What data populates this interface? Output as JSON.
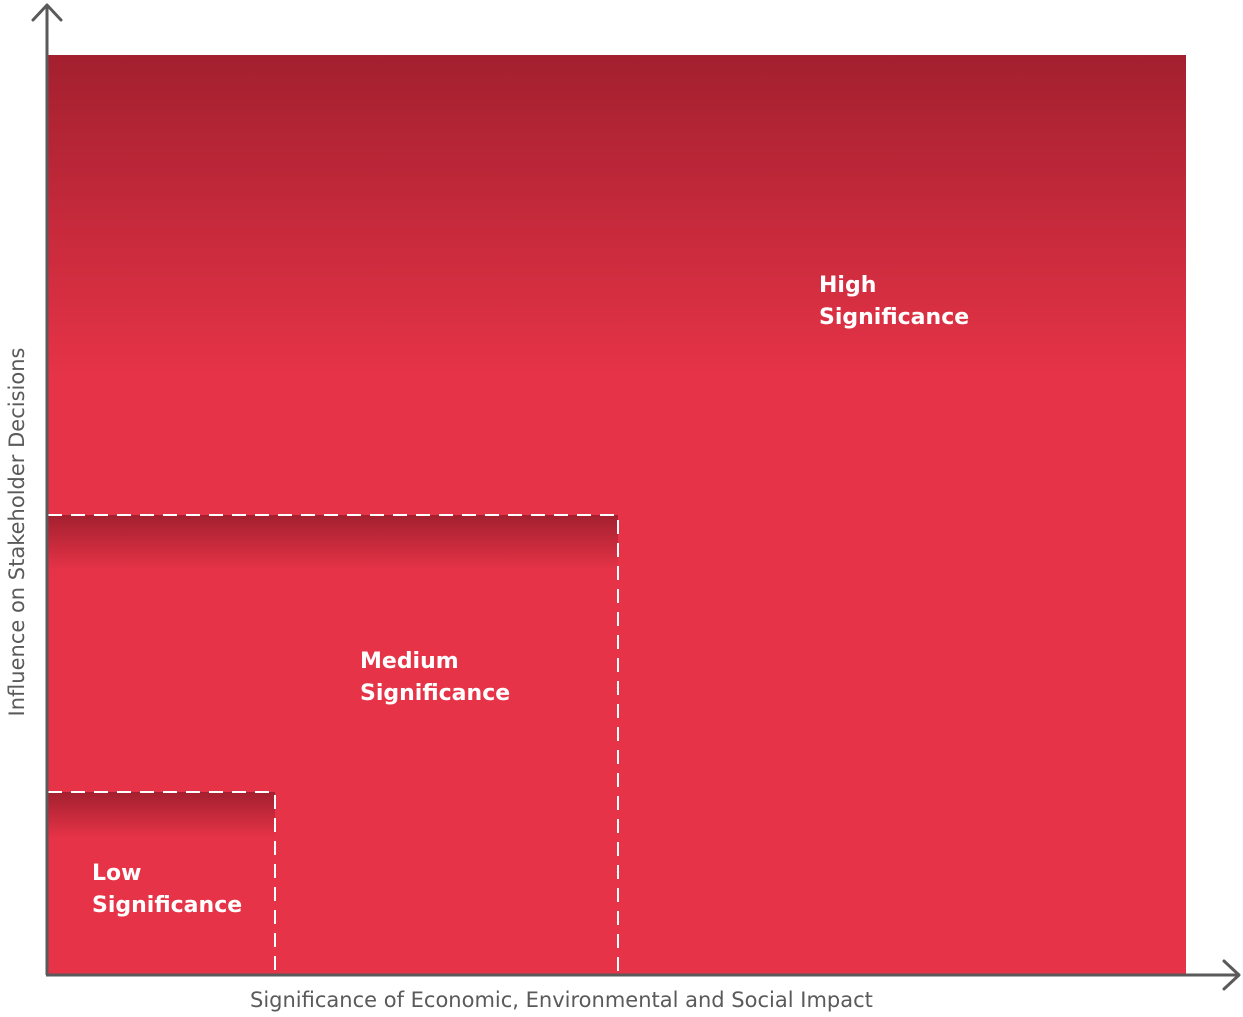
{
  "diagram": {
    "x_axis_label": "Significance of Economic, Environmental and Social Impact",
    "y_axis_label": "Influence on Stakeholder Decisions",
    "zones": [
      {
        "id": "high",
        "line1": "High",
        "line2": "Significance"
      },
      {
        "id": "medium",
        "line1": "Medium",
        "line2": "Significance"
      },
      {
        "id": "low",
        "line1": "Low",
        "line2": "Significance"
      }
    ]
  },
  "colors": {
    "zone_fill": "#e63347",
    "zone_fill_dark": "#a3202f",
    "axis_line": "#5a5a5a",
    "dashed_border": "#ffffff",
    "label_text": "#ffffff"
  }
}
